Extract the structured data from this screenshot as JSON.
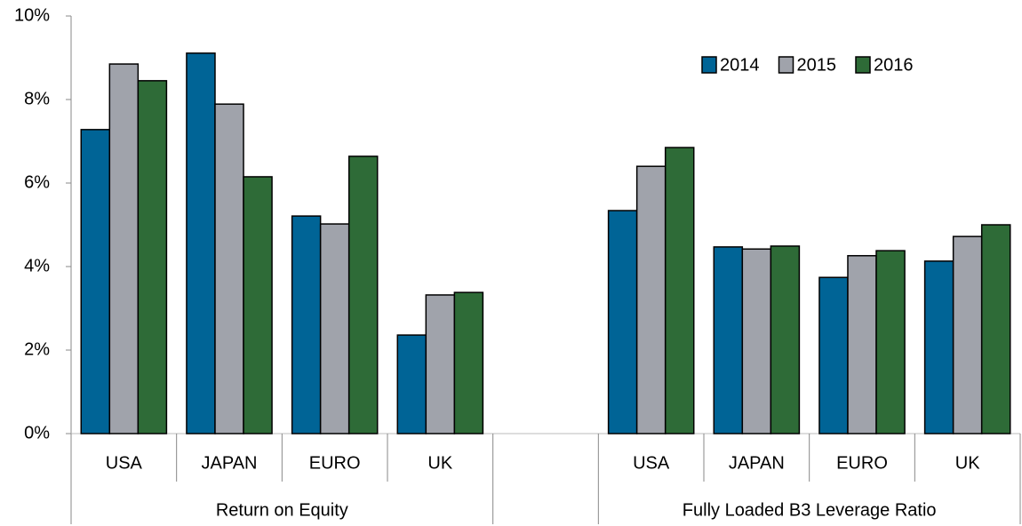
{
  "chart_data": {
    "type": "bar",
    "groups": [
      {
        "name": "Return on Equity",
        "categories": [
          "USA",
          "JAPAN",
          "EURO",
          "UK"
        ]
      },
      {
        "name": "Fully Loaded B3 Leverage Ratio",
        "categories": [
          "USA",
          "JAPAN",
          "EURO",
          "UK"
        ]
      }
    ],
    "series": [
      {
        "name": "2014",
        "color": "#006496",
        "values": [
          7.28,
          9.11,
          5.21,
          2.36,
          5.34,
          4.47,
          3.74,
          4.13
        ]
      },
      {
        "name": "2015",
        "color": "#a0a3ab",
        "values": [
          8.85,
          7.89,
          5.02,
          3.32,
          6.4,
          4.42,
          4.26,
          4.72
        ]
      },
      {
        "name": "2016",
        "color": "#2e6b37",
        "values": [
          8.45,
          6.15,
          6.64,
          3.38,
          6.85,
          4.49,
          4.38,
          5.0
        ]
      }
    ],
    "ylim": [
      0,
      10
    ],
    "yticks": [
      {
        "value": 0,
        "label": "0%"
      },
      {
        "value": 2,
        "label": "2%"
      },
      {
        "value": 4,
        "label": "4%"
      },
      {
        "value": 6,
        "label": "6%"
      },
      {
        "value": 8,
        "label": "8%"
      },
      {
        "value": 10,
        "label": "10%"
      }
    ],
    "legend": "upper right"
  }
}
